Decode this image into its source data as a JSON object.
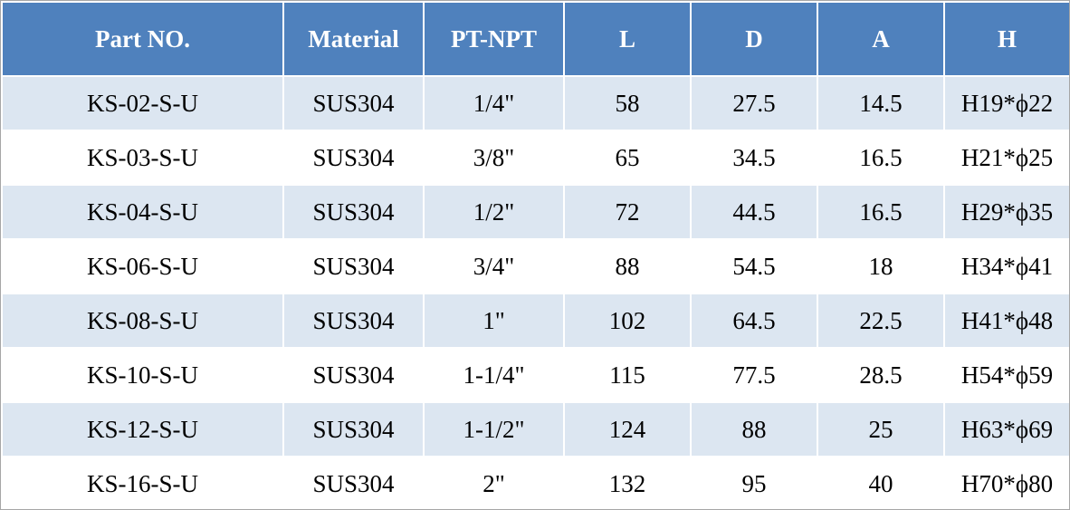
{
  "table": {
    "header": [
      "Part NO.",
      "Material",
      "PT-NPT",
      "L",
      "D",
      "A",
      "H"
    ],
    "rows": [
      [
        "KS-02-S-U",
        "SUS304",
        "1/4\"",
        58,
        27.5,
        14.5,
        "H19*ϕ22"
      ],
      [
        "KS-03-S-U",
        "SUS304",
        "3/8\"",
        65,
        34.5,
        16.5,
        "H21*ϕ25"
      ],
      [
        "KS-04-S-U",
        "SUS304",
        "1/2\"",
        72,
        44.5,
        16.5,
        "H29*ϕ35"
      ],
      [
        "KS-06-S-U",
        "SUS304",
        "3/4\"",
        88,
        54.5,
        18,
        "H34*ϕ41"
      ],
      [
        "KS-08-S-U",
        "SUS304",
        "1\"",
        102,
        64.5,
        22.5,
        "H41*ϕ48"
      ],
      [
        "KS-10-S-U",
        "SUS304",
        "1-1/4\"",
        115,
        77.5,
        28.5,
        "H54*ϕ59"
      ],
      [
        "KS-12-S-U",
        "SUS304",
        "1-1/2\"",
        124,
        88,
        25,
        "H63*ϕ69"
      ],
      [
        "KS-16-S-U",
        "SUS304",
        "2\"",
        132,
        95,
        40,
        "H70*ϕ80"
      ]
    ]
  }
}
